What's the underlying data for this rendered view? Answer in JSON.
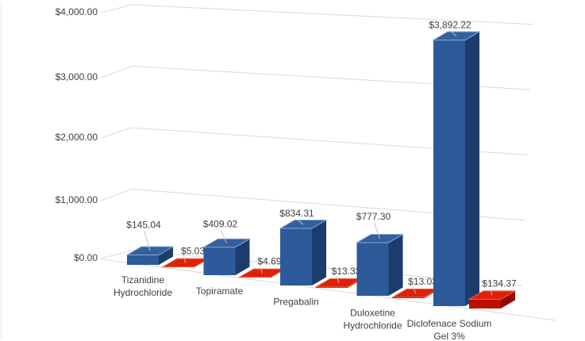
{
  "chart_data": {
    "type": "bar",
    "subtype": "3d-clustered-column",
    "title": "",
    "legend": "none",
    "gridlines": true,
    "background": "#ffffff",
    "categories": [
      "Tizanidine Hydrochloride",
      "Topiramate",
      "Pregabalin",
      "Duloxetine Hydrochloride",
      "Diclofenace Sodium Gel 3%"
    ],
    "category_label_lines": [
      [
        "Tizanidine",
        "Hydrochloride"
      ],
      [
        "Topiramate"
      ],
      [
        "Pregabalin"
      ],
      [
        "Duloxetine",
        "Hydrochloride"
      ],
      [
        "Diclofenace Sodium",
        "Gel 3%"
      ]
    ],
    "series": [
      {
        "name": "series-1-blue",
        "values": [
          145.04,
          409.02,
          834.31,
          777.3,
          3892.22
        ],
        "data_labels": [
          "$145.04",
          "$409.02",
          "$834.31",
          "$777.30",
          "$3,892.22"
        ],
        "color": "#2d5a99"
      },
      {
        "name": "series-2-red",
        "values": [
          5.03,
          4.69,
          13.33,
          13.03,
          134.37
        ],
        "data_labels": [
          "$5.03",
          "$4.69",
          "$13.33",
          "$13.03",
          "$134.37"
        ],
        "color": "#de200e"
      }
    ],
    "value_axis": {
      "min": 0,
      "max": 4000,
      "major_unit": 1000,
      "tick_values": [
        0,
        1000,
        2000,
        3000,
        4000
      ],
      "tick_labels": [
        "$0.00",
        "$1,000.00",
        "$2,000.00",
        "$3,000.00",
        "$4,000.00"
      ]
    }
  },
  "colors": {
    "background": "#ffffff",
    "gridline": "#d9d9d9",
    "chart_edge": "#e3e3e3",
    "text": "#404040",
    "leader_line": "#bfbfbf",
    "blue_series": {
      "front": "#2d5a99",
      "side": "#1c3c6b",
      "top": "#33609e",
      "bevel": "#8aa8d0"
    },
    "red_series": {
      "front": "#bc0f00",
      "side": "#8e0c00",
      "top": "#de200e",
      "bevel": "#f4683c"
    }
  }
}
